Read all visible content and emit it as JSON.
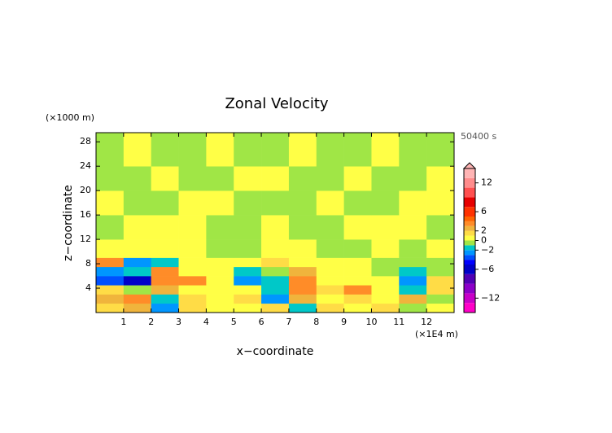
{
  "chart_data": {
    "type": "contour",
    "title": "Zonal Velocity",
    "y_unit": "(×1000 m)",
    "time_label": "50400 s",
    "x_unit": "(×1E4 m)",
    "x_label": "x−coordinate",
    "y_label": "z−coordinate",
    "xlim": [
      0,
      13
    ],
    "ylim": [
      0,
      29.5
    ],
    "xticks": [
      1,
      2,
      3,
      4,
      5,
      6,
      7,
      8,
      9,
      10,
      11,
      12
    ],
    "yticks": [
      4,
      8,
      12,
      16,
      20,
      24,
      28
    ],
    "x_edges": [
      0,
      1,
      2,
      3,
      4,
      5,
      6,
      7,
      8,
      9,
      10,
      11,
      12,
      13
    ],
    "z_edges": [
      0,
      1.5,
      3,
      4.5,
      6,
      7.5,
      9,
      12,
      16,
      20,
      24,
      29.5
    ],
    "values": [
      [
        1,
        2,
        -3,
        1,
        0.5,
        0.5,
        1,
        -2,
        1,
        0.5,
        1,
        -1,
        0.5
      ],
      [
        2,
        3,
        -2,
        1,
        0.5,
        1,
        -3,
        2,
        0.5,
        1,
        0.5,
        2,
        -1
      ],
      [
        1,
        -1,
        2,
        0.5,
        0.5,
        0.5,
        -2,
        3,
        1,
        3,
        0.5,
        -2,
        1
      ],
      [
        -4,
        -6,
        3,
        3,
        0.5,
        -3,
        -2,
        3,
        0.5,
        0.5,
        0.5,
        -3,
        1
      ],
      [
        -3,
        -2,
        3,
        0.5,
        0.5,
        -2,
        -1,
        2,
        0.5,
        0.5,
        -1,
        -2,
        -1
      ],
      [
        3,
        -3,
        -2,
        0.5,
        0.5,
        0.5,
        1,
        0.5,
        0.5,
        0.5,
        -0.5,
        -0.5,
        -0.5
      ],
      [
        0.5,
        0.5,
        0.5,
        0.5,
        -0.5,
        -0.5,
        0.5,
        0.5,
        -0.5,
        -0.5,
        0.5,
        -0.5,
        0.5
      ],
      [
        -0.5,
        0.5,
        0.5,
        0.5,
        -0.5,
        -0.5,
        0.5,
        -0.5,
        -0.5,
        0.5,
        0.5,
        0.5,
        -0.5
      ],
      [
        0.5,
        -0.5,
        -0.5,
        0.5,
        0.5,
        -0.5,
        -0.5,
        -0.5,
        0.5,
        -0.5,
        -0.5,
        0.5,
        0.5
      ],
      [
        -0.5,
        -0.5,
        0.5,
        -0.5,
        -0.5,
        0.5,
        0.5,
        -0.5,
        -0.5,
        0.5,
        -0.5,
        -0.5,
        0.5
      ],
      [
        -0.5,
        0.5,
        -0.5,
        -0.5,
        0.5,
        -0.5,
        -0.5,
        0.5,
        -0.5,
        -0.5,
        0.5,
        -0.5,
        -0.5
      ]
    ],
    "clim": [
      -15,
      15
    ],
    "levels": [
      -15,
      -13,
      -11,
      -9,
      -7,
      -5,
      -4,
      -3,
      -2,
      -1,
      0,
      1,
      2,
      3,
      4,
      5,
      7,
      9,
      11,
      13,
      15
    ],
    "colors": [
      "#ff00c8",
      "#c800c8",
      "#8c00c8",
      "#5000b4",
      "#0000c8",
      "#0000ff",
      "#0050ff",
      "#0096ff",
      "#00c8c8",
      "#a0e646",
      "#ffff46",
      "#ffdc46",
      "#f0b43c",
      "#ff8c28",
      "#ff6400",
      "#ff3200",
      "#e60000",
      "#ff5050",
      "#ff8c8c",
      "#ffb4b4"
    ],
    "colorbar_ticks": [
      12,
      6,
      2,
      0,
      {
        "value": -2,
        "label": "−2"
      },
      {
        "value": -6,
        "label": "−6"
      },
      {
        "value": -12,
        "label": "−12"
      }
    ]
  }
}
